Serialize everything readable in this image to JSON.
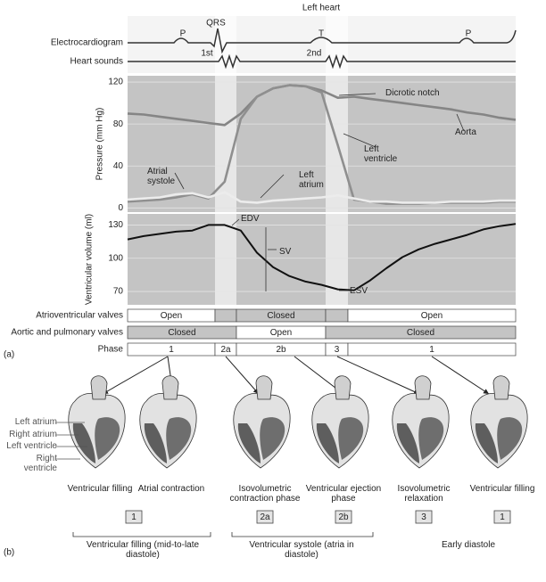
{
  "header": "Left heart",
  "panel_a_label": "(a)",
  "panel_b_label": "(b)",
  "ecg": {
    "label": "Electrocardiogram",
    "waves": [
      "P",
      "QRS",
      "T",
      "P"
    ]
  },
  "sounds": {
    "label": "Heart sounds",
    "first": "1st",
    "second": "2nd"
  },
  "chart_data": [
    {
      "type": "line",
      "ylabel": "Pressure (mm Hg)",
      "ylim": [
        -4,
        126
      ],
      "yticks": [
        0,
        40,
        80,
        120
      ],
      "grid": true,
      "categories": [
        null,
        null,
        null,
        null,
        null,
        null,
        null,
        null,
        null,
        null,
        null,
        null,
        null,
        null,
        null,
        null,
        null,
        null,
        null,
        null,
        null,
        null,
        null,
        null,
        null
      ],
      "series": [
        {
          "name": "Aorta",
          "color": "#858585",
          "values": [
            90,
            89,
            87,
            85,
            83,
            81,
            79,
            90,
            106,
            114,
            117,
            116,
            112,
            105,
            106,
            104,
            102,
            100,
            98,
            96,
            94,
            91,
            89,
            86,
            84
          ]
        },
        {
          "name": "Left ventricle",
          "color": "#8f8f8f",
          "values": [
            6,
            7,
            8,
            10,
            13,
            9,
            25,
            85,
            106,
            114,
            117,
            116,
            110,
            60,
            8,
            6,
            4,
            4,
            4,
            5,
            5,
            5,
            5,
            6,
            6
          ]
        },
        {
          "name": "Left atrium",
          "color": "#ececec",
          "values": [
            8,
            9,
            10,
            13,
            14,
            10,
            15,
            6,
            5,
            7,
            8,
            9,
            10,
            12,
            9,
            6,
            6,
            5,
            5,
            5,
            6,
            6,
            6,
            7,
            7
          ]
        }
      ],
      "annotations": [
        "Atrial systole",
        "Dicrotic notch"
      ]
    },
    {
      "type": "line",
      "ylabel": "Ventricular volume (ml)",
      "ylim": [
        58,
        140
      ],
      "yticks": [
        70,
        100,
        130
      ],
      "grid": true,
      "categories": [
        null,
        null,
        null,
        null,
        null,
        null,
        null,
        null,
        null,
        null,
        null,
        null,
        null,
        null,
        null,
        null,
        null,
        null,
        null,
        null,
        null,
        null,
        null,
        null,
        null
      ],
      "series": [
        {
          "color": "#111111",
          "values": [
            117,
            120,
            122,
            124,
            125,
            130,
            130,
            125,
            105,
            92,
            84,
            79,
            76,
            72,
            71,
            80,
            91,
            101,
            108,
            113,
            117,
            121,
            126,
            129,
            131
          ]
        }
      ],
      "annotations": [
        "EDV",
        "SV",
        "ESV"
      ]
    }
  ],
  "valves": {
    "av_label": "Atrioventricular valves",
    "av": [
      "Open",
      "Closed",
      "Open"
    ],
    "aortic_label": "Aortic and pulmonary valves",
    "aortic": [
      "Closed",
      "Open",
      "Closed"
    ]
  },
  "phase_label": "Phase",
  "phases": [
    "1",
    "2a",
    "2b",
    "3",
    "1"
  ],
  "heart_labels": [
    "Left atrium",
    "Right atrium",
    "Left ventricle",
    "Right ventricle"
  ],
  "stages": [
    {
      "caption": "Ventricular filling"
    },
    {
      "caption": "Atrial contraction"
    },
    {
      "caption": "Isovolumetric contraction phase"
    },
    {
      "caption": "Ventricular ejection phase"
    },
    {
      "caption": "Isovolumetric relaxation"
    },
    {
      "caption": "Ventricular filling"
    }
  ],
  "stage_boxes": [
    "1",
    "2a",
    "2b",
    "3",
    "1"
  ],
  "groups": [
    "Ventricular filling (mid-to-late diastole)",
    "Ventricular systole (atria in diastole)",
    "Early diastole"
  ]
}
